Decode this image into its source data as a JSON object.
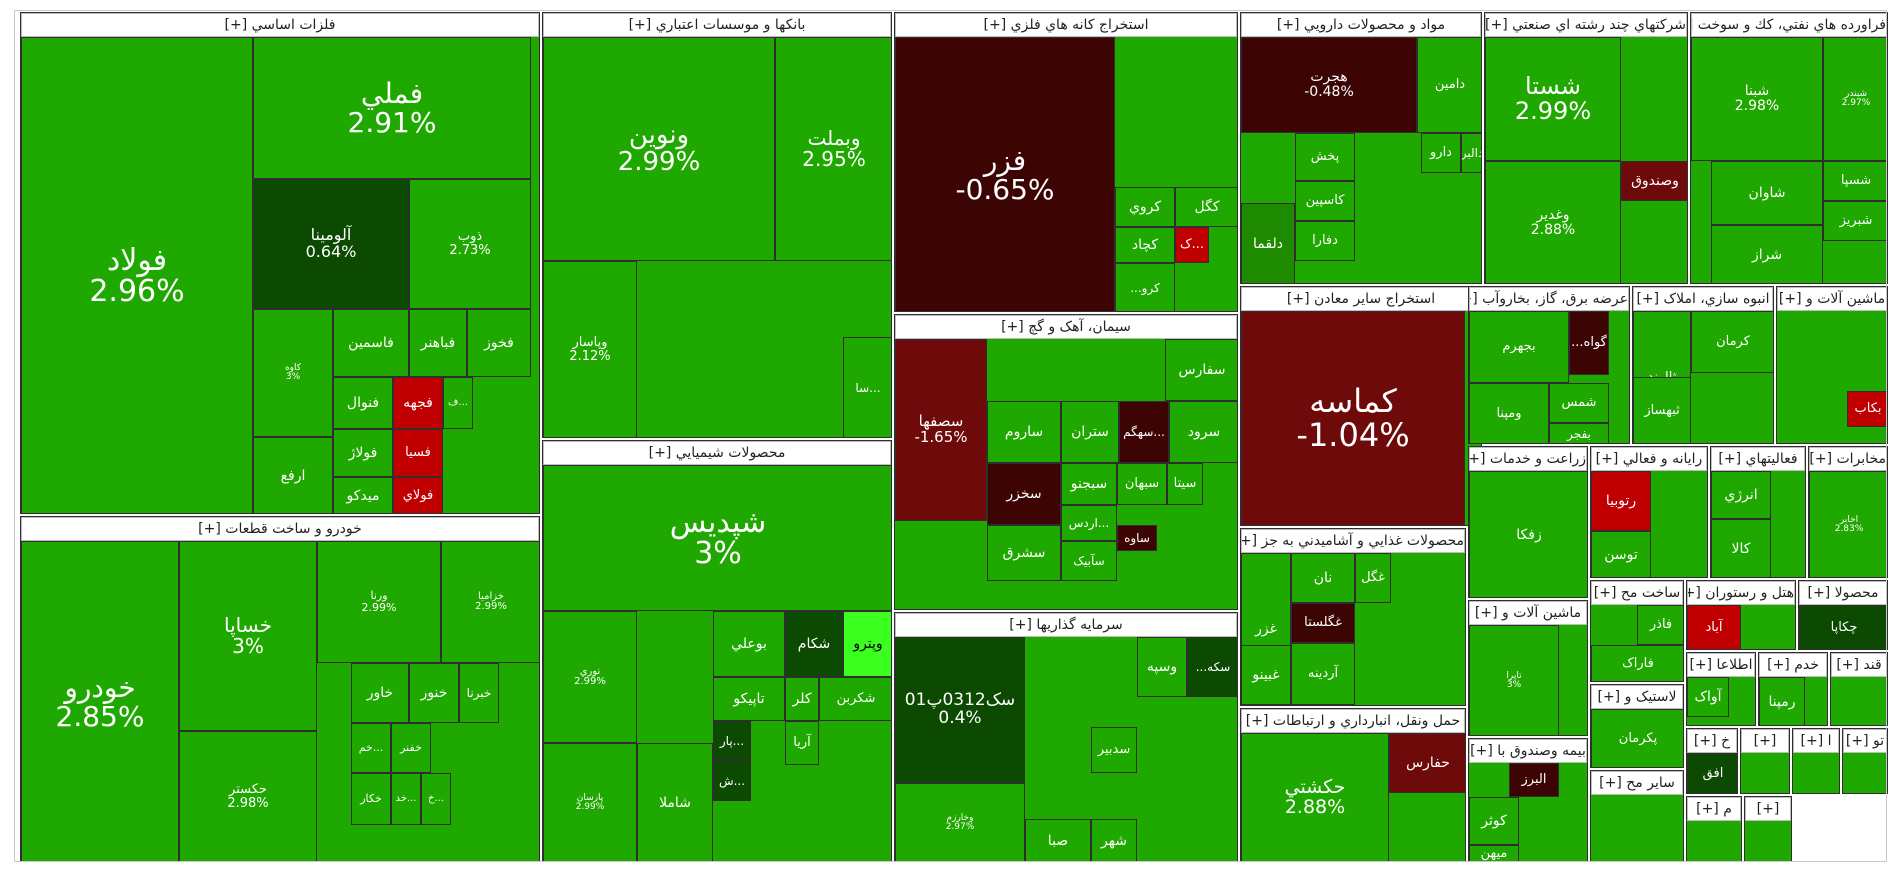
{
  "chart_data": {
    "type": "treemap",
    "colors": {
      "up_strong": "#1fa800",
      "up": "#2fae0c",
      "up_mid": "#1e8a00",
      "up_dark": "#0f6a06",
      "up_darker": "#0b4a00",
      "up_bright": "#3bff1f",
      "down_light": "#c00000",
      "down": "#a00808",
      "down_dark": "#6e0a0a",
      "down_darker": "#3d0404",
      "gray": "#d9d9d9"
    },
    "sectors": [
      {
        "title": "فلزات اساسي [+]",
        "tiles": [
          {
            "name": "فولاد",
            "pct": "2.96%"
          },
          {
            "name": "فملي",
            "pct": "2.91%"
          },
          {
            "name": "آلومينا",
            "pct": "0.64%"
          },
          {
            "name": "ذوب",
            "pct": "2.73%"
          },
          {
            "name": "کاوه",
            "pct": "3%"
          },
          {
            "name": "فخوز",
            "pct": ""
          },
          {
            "name": "فباهنر",
            "pct": ""
          },
          {
            "name": "فاسمين",
            "pct": ""
          },
          {
            "name": "فنوال",
            "pct": ""
          },
          {
            "name": "فجهه",
            "pct": ""
          },
          {
            "name": "ف...",
            "pct": ""
          },
          {
            "name": "فسيا",
            "pct": ""
          },
          {
            "name": "فولاژ",
            "pct": ""
          },
          {
            "name": "ارفع",
            "pct": ""
          },
          {
            "name": "ميدکو",
            "pct": ""
          },
          {
            "name": "فولاي",
            "pct": ""
          }
        ]
      },
      {
        "title": "خودرو و ساخت قطعات [+]",
        "tiles": [
          {
            "name": "خودرو",
            "pct": "2.85%"
          },
          {
            "name": "خساپا",
            "pct": "3%"
          },
          {
            "name": "حکستر",
            "pct": "2.98%"
          },
          {
            "name": "ورنا",
            "pct": "2.99%"
          },
          {
            "name": "خزاميا",
            "pct": "2.99%"
          },
          {
            "name": "خاور",
            "pct": ""
          },
          {
            "name": "خنور",
            "pct": ""
          },
          {
            "name": "خبرنا",
            "pct": ""
          },
          {
            "name": "خم...",
            "pct": ""
          },
          {
            "name": "خفنر",
            "pct": ""
          },
          {
            "name": "خکار",
            "pct": ""
          },
          {
            "name": "خد...",
            "pct": ""
          },
          {
            "name": "خ...",
            "pct": ""
          }
        ]
      },
      {
        "title": "بانکها و موسسات اعتباري [+]",
        "tiles": [
          {
            "name": "ونوين",
            "pct": "2.99%"
          },
          {
            "name": "وبملت",
            "pct": "2.95%"
          },
          {
            "name": "وپاسار",
            "pct": "2.12%"
          },
          {
            "name": "سا...",
            "pct": ""
          }
        ]
      },
      {
        "title": "محصولات شيميايي [+]",
        "tiles": [
          {
            "name": "شپديس",
            "pct": "3%"
          },
          {
            "name": "نوري",
            "pct": "2.99%"
          },
          {
            "name": "پارسان",
            "pct": "2.99%"
          },
          {
            "name": "بوعلي",
            "pct": ""
          },
          {
            "name": "شکام",
            "pct": ""
          },
          {
            "name": "وپترو",
            "pct": ""
          },
          {
            "name": "تاپيکو",
            "pct": ""
          },
          {
            "name": "کلر",
            "pct": ""
          },
          {
            "name": "شکربن",
            "pct": ""
          },
          {
            "name": "شاملا",
            "pct": ""
          },
          {
            "name": "آريا",
            "pct": ""
          },
          {
            "name": "پار...",
            "pct": ""
          },
          {
            "name": "ش...",
            "pct": ""
          }
        ]
      },
      {
        "title": "استخراج کانه هاي فلزي [+]",
        "tiles": [
          {
            "name": "فزر",
            "pct": "-0.65%"
          },
          {
            "name": "کگل",
            "pct": ""
          },
          {
            "name": "کروي",
            "pct": ""
          },
          {
            "name": "کچاد",
            "pct": ""
          },
          {
            "name": "ک...",
            "pct": ""
          },
          {
            "name": "...کرو",
            "pct": ""
          }
        ]
      },
      {
        "title": "سيمان، آهک و گچ [+]",
        "tiles": [
          {
            "name": "سصفها",
            "pct": "-1.65%"
          },
          {
            "name": "سفارس",
            "pct": ""
          },
          {
            "name": "ساروم",
            "pct": ""
          },
          {
            "name": "ستران",
            "pct": ""
          },
          {
            "name": "سهگم...",
            "pct": ""
          },
          {
            "name": "سرود",
            "pct": ""
          },
          {
            "name": "سخزر",
            "pct": ""
          },
          {
            "name": "سبجنو",
            "pct": ""
          },
          {
            "name": "سبهان",
            "pct": ""
          },
          {
            "name": "سيتا",
            "pct": ""
          },
          {
            "name": "اردس...",
            "pct": ""
          },
          {
            "name": "ساوه",
            "pct": ""
          },
          {
            "name": "سشرق",
            "pct": ""
          },
          {
            "name": "سآبيک",
            "pct": ""
          }
        ]
      },
      {
        "title": "سرمايه گذاريها [+]",
        "tiles": [
          {
            "name": "سک0312پ01",
            "pct": "0.4%"
          },
          {
            "name": "وخارزم",
            "pct": "2.97%"
          },
          {
            "name": "وسپه",
            "pct": ""
          },
          {
            "name": "...سکه",
            "pct": ""
          },
          {
            "name": "سدبير",
            "pct": ""
          },
          {
            "name": "صبا",
            "pct": ""
          },
          {
            "name": "شهر",
            "pct": ""
          }
        ]
      },
      {
        "title": "مواد و محصولات دارويي [+]",
        "tiles": [
          {
            "name": "هجرت",
            "pct": "-0.48%"
          },
          {
            "name": "دامين",
            "pct": ""
          },
          {
            "name": "دالبر",
            "pct": ""
          },
          {
            "name": "دارو",
            "pct": ""
          },
          {
            "name": "پخش",
            "pct": ""
          },
          {
            "name": "کاسپين",
            "pct": ""
          },
          {
            "name": "دلقما",
            "pct": ""
          },
          {
            "name": "دفارا",
            "pct": ""
          }
        ]
      },
      {
        "title": "استخراج ساير معادن [+]",
        "tiles": [
          {
            "name": "کماسه",
            "pct": "-1.04%"
          }
        ]
      },
      {
        "title": "شرکتهاي چند رشته اي صنعتي [+]",
        "tiles": [
          {
            "name": "شستا",
            "pct": "2.99%"
          },
          {
            "name": "وغدير",
            "pct": "2.88%"
          },
          {
            "name": "وصندوق",
            "pct": ""
          }
        ]
      },
      {
        "title": "فراورده هاي نفتي، كك و سوخت [+]",
        "tiles": [
          {
            "name": "شبنا",
            "pct": "2.98%"
          },
          {
            "name": "شبندر",
            "pct": "2.97%"
          },
          {
            "name": "شاوان",
            "pct": ""
          },
          {
            "name": "شسپا",
            "pct": ""
          },
          {
            "name": "شبريز",
            "pct": ""
          },
          {
            "name": "شراز",
            "pct": ""
          }
        ]
      },
      {
        "title": "عرضه برق، گاز، بخاروآب [+]",
        "tiles": [
          {
            "name": "بجهرم",
            "pct": ""
          },
          {
            "name": "...گواه",
            "pct": ""
          },
          {
            "name": "شمس",
            "pct": ""
          },
          {
            "name": "ومپنا",
            "pct": ""
          },
          {
            "name": "بفجر",
            "pct": ""
          }
        ]
      },
      {
        "title": "انبوه سازي، املاک [+]",
        "tiles": [
          {
            "name": "ثالوند",
            "pct": ""
          },
          {
            "name": "کرمان",
            "pct": ""
          },
          {
            "name": "ثبهساز",
            "pct": ""
          }
        ]
      },
      {
        "title": "ماشين آلات و [+]",
        "tiles": [
          {
            "name": "بکاب",
            "pct": ""
          }
        ]
      },
      {
        "title": "محصولات غذايي و آشاميدني به جز [+]",
        "tiles": [
          {
            "name": "غزر",
            "pct": ""
          },
          {
            "name": "نان",
            "pct": ""
          },
          {
            "name": "غگل",
            "pct": ""
          },
          {
            "name": "غگلستا",
            "pct": ""
          },
          {
            "name": "غبينو",
            "pct": ""
          },
          {
            "name": "آردينه",
            "pct": ""
          }
        ]
      },
      {
        "title": "زراعت و خدمات [+]",
        "tiles": [
          {
            "name": "زفکا",
            "pct": ""
          }
        ]
      },
      {
        "title": "رايانه و فعالي [+]",
        "tiles": [
          {
            "name": "رتوبيا",
            "pct": ""
          },
          {
            "name": "توسن",
            "pct": ""
          }
        ]
      },
      {
        "title": "فعاليتهاي [+]",
        "tiles": [
          {
            "name": "انرژي",
            "pct": ""
          },
          {
            "name": "کالا",
            "pct": ""
          }
        ]
      },
      {
        "title": "مخابرات [+]",
        "tiles": [
          {
            "name": "اخابر",
            "pct": "2.83%"
          }
        ]
      },
      {
        "title": "حمل ونقل، انبارداري و ارتباطات [+]",
        "tiles": [
          {
            "name": "حکشتي",
            "pct": "2.88%"
          },
          {
            "name": "حفارس",
            "pct": ""
          }
        ]
      },
      {
        "title": "ماشين آلات و [+]",
        "tiles": [
          {
            "name": "تاپرا",
            "pct": "3%"
          }
        ]
      },
      {
        "title": "ساخت مح [+]",
        "tiles": [
          {
            "name": "فاذر",
            "pct": ""
          },
          {
            "name": "فاراک",
            "pct": ""
          }
        ]
      },
      {
        "title": "هتل و رستوران [+]",
        "tiles": [
          {
            "name": "آباد",
            "pct": ""
          }
        ]
      },
      {
        "title": "محصولا [+]",
        "tiles": [
          {
            "name": "چکاپا",
            "pct": ""
          }
        ]
      },
      {
        "title": "لاستيک و [+]",
        "tiles": [
          {
            "name": "پکرمان",
            "pct": ""
          }
        ]
      },
      {
        "title": "بيمه وصندوق با [+]",
        "tiles": [
          {
            "name": "البرز",
            "pct": ""
          },
          {
            "name": "کوثر",
            "pct": ""
          },
          {
            "name": "ميهن",
            "pct": ""
          }
        ]
      },
      {
        "title": "ساير مح [+]",
        "tiles": []
      },
      {
        "title": "اطلاعا [+]",
        "tiles": [
          {
            "name": "آواک",
            "pct": ""
          }
        ]
      },
      {
        "title": "خدم [+]",
        "tiles": [
          {
            "name": "رمپنا",
            "pct": ""
          }
        ]
      },
      {
        "title": "قند [+]",
        "tiles": []
      },
      {
        "title": "خ [+]",
        "tiles": [
          {
            "name": "افق",
            "pct": ""
          }
        ]
      },
      {
        "title": "[+]",
        "tiles": []
      },
      {
        "title": "ا [+]",
        "tiles": []
      },
      {
        "title": "تو [+]",
        "tiles": []
      },
      {
        "title": "م [+]",
        "tiles": []
      },
      {
        "title": "[+]",
        "tiles": []
      }
    ]
  }
}
